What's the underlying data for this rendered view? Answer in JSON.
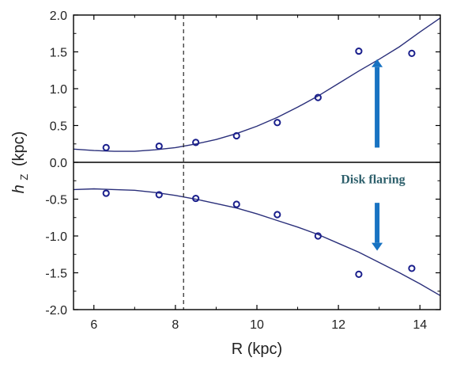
{
  "chart_data": {
    "type": "scatter",
    "xlabel": "R (kpc)",
    "ylabel_main": "h",
    "ylabel_sub": "Z",
    "ylabel_unit": "(kpc)",
    "xlim": [
      5.5,
      14.5
    ],
    "ylim": [
      -2.0,
      2.0
    ],
    "xticks": [
      6,
      8,
      10,
      12,
      14
    ],
    "yticks": [
      2.0,
      1.5,
      1.0,
      0.5,
      0.0,
      -0.5,
      -1.0,
      -1.5,
      -2.0
    ],
    "ytick_labels": [
      "2.0",
      "1.5",
      "1.0",
      "0.5",
      "0.0",
      "-0.5",
      "-1.0",
      "-1.5",
      "-2.0"
    ],
    "sun_line_x": 8.2,
    "grid": false,
    "series": [
      {
        "points_x": [
          6.3,
          7.6,
          8.5,
          9.5,
          10.5,
          11.5,
          12.5,
          13.8
        ],
        "points_y": [
          0.2,
          0.22,
          0.27,
          0.36,
          0.54,
          0.88,
          1.51,
          1.48
        ]
      },
      {
        "points_x": [
          6.3,
          7.6,
          8.5,
          9.5,
          10.5,
          11.5,
          12.5,
          13.8
        ],
        "points_y": [
          -0.42,
          -0.44,
          -0.49,
          -0.57,
          -0.71,
          -1.0,
          -1.52,
          -1.44
        ]
      }
    ],
    "fits": [
      {
        "x": [
          5.5,
          6.0,
          6.5,
          7.0,
          7.5,
          8.0,
          8.5,
          9.0,
          9.5,
          10.0,
          10.5,
          11.0,
          11.5,
          12.0,
          12.5,
          13.0,
          13.5,
          14.0,
          14.5
        ],
        "y": [
          0.18,
          0.16,
          0.15,
          0.15,
          0.17,
          0.2,
          0.25,
          0.31,
          0.39,
          0.49,
          0.61,
          0.75,
          0.9,
          1.07,
          1.24,
          1.4,
          1.57,
          1.77,
          1.96
        ]
      },
      {
        "x": [
          5.5,
          6.0,
          6.5,
          7.0,
          7.5,
          8.0,
          8.5,
          9.0,
          9.5,
          10.0,
          10.5,
          11.0,
          11.5,
          12.0,
          12.5,
          13.0,
          13.5,
          14.0,
          14.5
        ],
        "y": [
          -0.37,
          -0.36,
          -0.37,
          -0.38,
          -0.41,
          -0.45,
          -0.5,
          -0.56,
          -0.62,
          -0.7,
          -0.79,
          -0.88,
          -0.98,
          -1.1,
          -1.22,
          -1.36,
          -1.5,
          -1.65,
          -1.81
        ]
      }
    ],
    "annotations": {
      "label": "Disk flaring",
      "label_x": 12.85,
      "label_y": -0.22,
      "arrow_up": {
        "x": 12.95,
        "y_from": 0.2,
        "y_to": 1.4
      },
      "arrow_down": {
        "x": 12.95,
        "y_from": -0.55,
        "y_to": -1.2
      }
    },
    "colors": {
      "marker": "#1a1f8c",
      "fit": "#2a2f7a",
      "arrow": "#1873c2",
      "axis": "#000000"
    }
  }
}
